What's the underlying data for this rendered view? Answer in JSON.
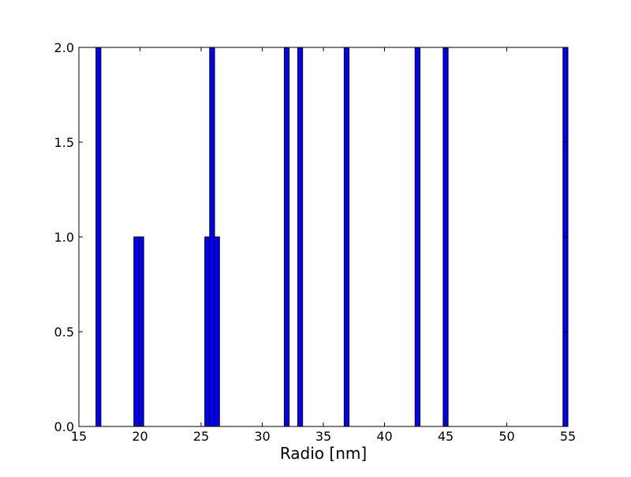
{
  "chart_data": {
    "type": "bar",
    "title": "",
    "xlabel": "Radio [nm]",
    "ylabel": "",
    "xlim": [
      15,
      55
    ],
    "ylim": [
      0,
      2
    ],
    "grid": false,
    "bar_color": "#0000ff",
    "edge_color": "#000000",
    "bin_width": 0.4,
    "x_ticks": [
      {
        "value": 15,
        "label": "15"
      },
      {
        "value": 20,
        "label": "20"
      },
      {
        "value": 25,
        "label": "25"
      },
      {
        "value": 30,
        "label": "30"
      },
      {
        "value": 35,
        "label": "35"
      },
      {
        "value": 40,
        "label": "40"
      },
      {
        "value": 45,
        "label": "45"
      },
      {
        "value": 50,
        "label": "50"
      },
      {
        "value": 55,
        "label": "55"
      }
    ],
    "y_ticks": [
      {
        "value": 0,
        "label": "0.0"
      },
      {
        "value": 0.5,
        "label": "0.5"
      },
      {
        "value": 1,
        "label": "1.0"
      },
      {
        "value": 1.5,
        "label": "1.5"
      },
      {
        "value": 2,
        "label": "2.0"
      }
    ],
    "bars": [
      {
        "x": 16.4,
        "value": 2
      },
      {
        "x": 19.5,
        "value": 1
      },
      {
        "x": 19.9,
        "value": 1
      },
      {
        "x": 25.3,
        "value": 1
      },
      {
        "x": 25.7,
        "value": 2
      },
      {
        "x": 26.1,
        "value": 1
      },
      {
        "x": 31.8,
        "value": 2
      },
      {
        "x": 32.9,
        "value": 2
      },
      {
        "x": 36.7,
        "value": 2
      },
      {
        "x": 42.5,
        "value": 2
      },
      {
        "x": 44.8,
        "value": 2
      },
      {
        "x": 54.6,
        "value": 2
      }
    ]
  }
}
